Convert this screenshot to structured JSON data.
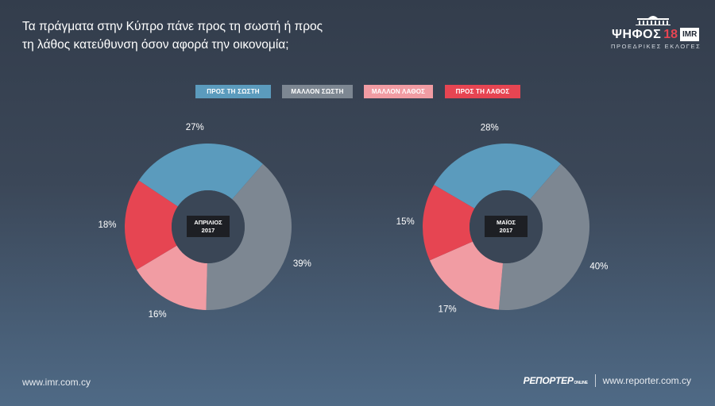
{
  "title": {
    "line1": "Τα πράγματα στην Κύπρο πάνε προς τη σωστή ή προς",
    "line2": "τη λάθος κατεύθυνση όσον αφορά την οικονομία;"
  },
  "brand": {
    "word": "ΨΗΦΟΣ",
    "number": "18",
    "badge": "IMR",
    "subtitle": "ΠΡΟΕΔΡΙΚΕΣ ΕΚΛΟΓΕΣ",
    "icon": "parliament-building-icon"
  },
  "colors": {
    "pros_ti_sosti": "#5b9bbd",
    "mallon_sosti": "#7d8792",
    "mallon_lathos": "#f19ca3",
    "pros_ti_lathos": "#e64552",
    "center_label_bg": "#1d1f24"
  },
  "chart_data": [
    {
      "type": "pie",
      "variant": "donut",
      "center_label": [
        "ΑΠΡΙΛΙΟΣ",
        "2017"
      ],
      "categories": [
        "ΠΡΟΣ ΤΗ ΣΩΣΤΗ",
        "ΜΑΛΛΟΝ ΣΩΣΤΗ",
        "ΜΑΛΛΟΝ ΛΑΘΟΣ",
        "ΠΡΟΣ ΤΗ ΛΑΘΟΣ"
      ],
      "values": [
        27,
        39,
        16,
        18
      ],
      "value_labels": [
        "27%",
        "39%",
        "16%",
        "18%"
      ],
      "legend": "top-center"
    },
    {
      "type": "pie",
      "variant": "donut",
      "center_label": [
        "ΜΑΪΟΣ",
        "2017"
      ],
      "categories": [
        "ΠΡΟΣ ΤΗ ΣΩΣΤΗ",
        "ΜΑΛΛΟΝ ΣΩΣΤΗ",
        "ΜΑΛΛΟΝ ΛΑΘΟΣ",
        "ΠΡΟΣ ΤΗ ΛΑΘΟΣ"
      ],
      "values": [
        28,
        40,
        17,
        15
      ],
      "value_labels": [
        "28%",
        "40%",
        "17%",
        "15%"
      ],
      "legend": "top-center"
    }
  ],
  "legend": [
    {
      "label": "ΠΡΟΣ ΤΗ ΣΩΣΤΗ",
      "color": "#5b9bbd"
    },
    {
      "label": "ΜΑΛΛΟΝ ΣΩΣΤΗ",
      "color": "#7d8792"
    },
    {
      "label": "ΜΑΛΛΟΝ ΛΑΘΟΣ",
      "color": "#f19ca3"
    },
    {
      "label": "ΠΡΟΣ ΤΗ ΛΑΘΟΣ",
      "color": "#e64552"
    }
  ],
  "footer": {
    "left_url": "www.imr.com.cy",
    "reporter_logo": "ΡΕΠΟΡΤΕΡ",
    "reporter_suffix": "ONLINE",
    "right_url": "www.reporter.com.cy"
  }
}
